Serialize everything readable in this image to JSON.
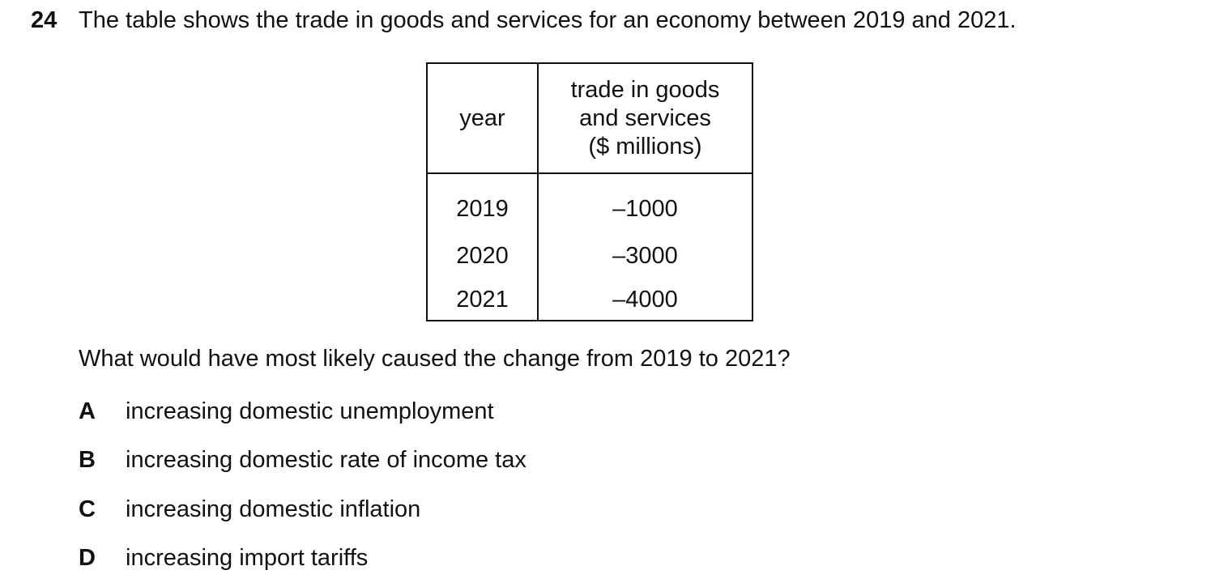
{
  "question": {
    "number": "24",
    "stem": "The table shows the trade in goods and services for an economy between 2019 and 2021.",
    "prompt": "What would have most likely caused the change from 2019 to 2021?"
  },
  "table": {
    "headers": {
      "year": "year",
      "trade_line1": "trade in goods",
      "trade_line2": "and services",
      "trade_line3": "($ millions)"
    },
    "rows": [
      {
        "year": "2019",
        "value": "–1000"
      },
      {
        "year": "2020",
        "value": "–3000"
      },
      {
        "year": "2021",
        "value": "–4000"
      }
    ]
  },
  "options": [
    {
      "letter": "A",
      "text": "increasing domestic unemployment"
    },
    {
      "letter": "B",
      "text": "increasing domestic rate of income tax"
    },
    {
      "letter": "C",
      "text": "increasing domestic inflation"
    },
    {
      "letter": "D",
      "text": "increasing import tariffs"
    }
  ]
}
